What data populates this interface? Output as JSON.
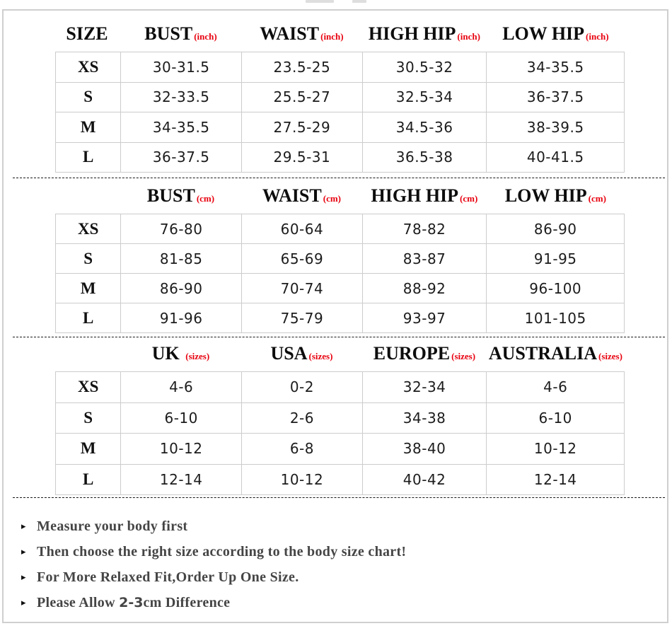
{
  "colors": {
    "accent_red": "#e8000f",
    "header_black": "#0d0d0d",
    "value_text": "#1c1c1c",
    "note_text": "#454545",
    "grid_line": "#cccccc",
    "frame_border": "#cfcfcf"
  },
  "bullet_glyph": "▸",
  "tables": [
    {
      "id": "inch",
      "headers": [
        {
          "label": "SIZE",
          "unit": ""
        },
        {
          "label": "BUST",
          "unit": "(inch)"
        },
        {
          "label": "WAIST",
          "unit": "(inch)"
        },
        {
          "label": "HIGH HIP",
          "unit": "(inch)"
        },
        {
          "label": "LOW HIP",
          "unit": "(inch)"
        }
      ],
      "rows": [
        {
          "size": "XS",
          "values": [
            "30-31.5",
            "23.5-25",
            "30.5-32",
            "34-35.5"
          ]
        },
        {
          "size": "S",
          "values": [
            "32-33.5",
            "25.5-27",
            "32.5-34",
            "36-37.5"
          ]
        },
        {
          "size": "M",
          "values": [
            "34-35.5",
            "27.5-29",
            "34.5-36",
            "38-39.5"
          ]
        },
        {
          "size": "L",
          "values": [
            "36-37.5",
            "29.5-31",
            "36.5-38",
            "40-41.5"
          ]
        }
      ]
    },
    {
      "id": "cm",
      "headers": [
        {
          "label": "",
          "unit": ""
        },
        {
          "label": "BUST",
          "unit": "(cm)"
        },
        {
          "label": "WAIST",
          "unit": "(cm)"
        },
        {
          "label": "HIGH HIP",
          "unit": "(cm)"
        },
        {
          "label": "LOW HIP",
          "unit": "(cm)"
        }
      ],
      "rows": [
        {
          "size": "XS",
          "values": [
            "76-80",
            "60-64",
            "78-82",
            "86-90"
          ]
        },
        {
          "size": "S",
          "values": [
            "81-85",
            "65-69",
            "83-87",
            "91-95"
          ]
        },
        {
          "size": "M",
          "values": [
            "86-90",
            "70-74",
            "88-92",
            "96-100"
          ]
        },
        {
          "size": "L",
          "values": [
            "91-96",
            "75-79",
            "93-97",
            "101-105"
          ]
        }
      ]
    },
    {
      "id": "international",
      "headers": [
        {
          "label": "",
          "unit": ""
        },
        {
          "label": "UK ",
          "unit": "(sizes)"
        },
        {
          "label": "USA",
          "unit": "(sizes)"
        },
        {
          "label": "EUROPE",
          "unit": "(sizes)"
        },
        {
          "label": "AUSTRALIA",
          "unit": "(sizes)"
        }
      ],
      "rows": [
        {
          "size": "XS",
          "values": [
            "4-6",
            "0-2",
            "32-34",
            "4-6"
          ]
        },
        {
          "size": "S",
          "values": [
            "6-10",
            "2-6",
            "34-38",
            "6-10"
          ]
        },
        {
          "size": "M",
          "values": [
            "10-12",
            "6-8",
            "38-40",
            "10-12"
          ]
        },
        {
          "size": "L",
          "values": [
            "12-14",
            "10-12",
            "40-42",
            "12-14"
          ]
        }
      ]
    }
  ],
  "notes": [
    {
      "prefix": "Measure your body first",
      "highlight": "",
      "suffix": ""
    },
    {
      "prefix": "Then choose the right size according to the body size chart!",
      "highlight": "",
      "suffix": ""
    },
    {
      "prefix": "For More Relaxed Fit,Order Up One Size.",
      "highlight": "",
      "suffix": ""
    },
    {
      "prefix": "Please Allow ",
      "highlight": "2-3",
      "suffix": "cm Difference"
    }
  ]
}
